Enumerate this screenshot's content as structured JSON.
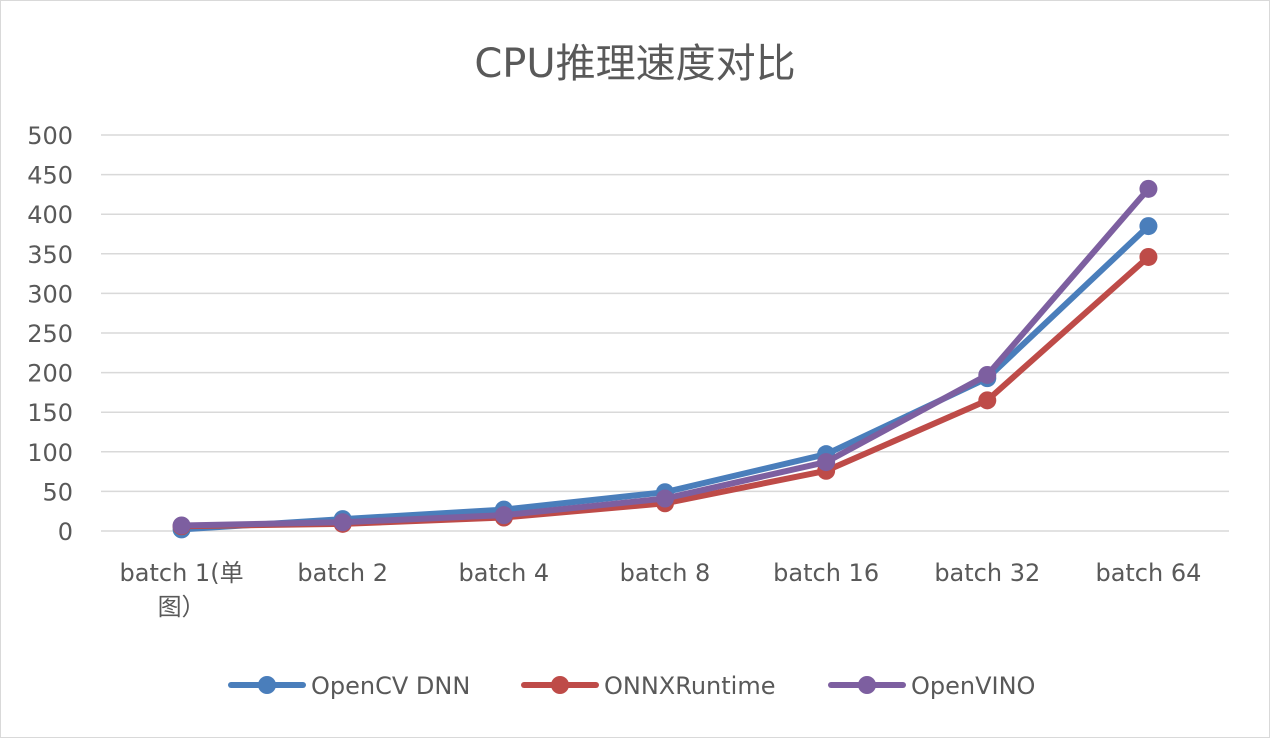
{
  "chart_data": {
    "type": "line",
    "title": "CPU推理速度对比",
    "xlabel": "",
    "ylabel": "",
    "categories": [
      "batch 1(单图）",
      "batch 2",
      "batch 4",
      "batch 8",
      "batch 16",
      "batch 32",
      "batch 64"
    ],
    "category_lines": [
      [
        "batch 1(单",
        "图）"
      ],
      [
        "batch 2"
      ],
      [
        "batch 4"
      ],
      [
        "batch 8"
      ],
      [
        "batch 16"
      ],
      [
        "batch 32"
      ],
      [
        "batch 64"
      ]
    ],
    "ylim": [
      0,
      500
    ],
    "yticks": [
      0,
      50,
      100,
      150,
      200,
      250,
      300,
      350,
      400,
      450,
      500
    ],
    "grid": true,
    "legend_position": "bottom",
    "series": [
      {
        "name": "OpenCV DNN",
        "color": "#4a7ebb",
        "values": [
          2,
          15,
          27,
          49,
          97,
          193,
          385
        ]
      },
      {
        "name": "ONNXRuntime",
        "color": "#be4b48",
        "values": [
          6,
          9,
          17,
          35,
          76,
          165,
          346
        ]
      },
      {
        "name": "OpenVINO",
        "color": "#7d5fa0",
        "values": [
          7,
          11,
          20,
          41,
          87,
          197,
          432
        ]
      }
    ]
  }
}
